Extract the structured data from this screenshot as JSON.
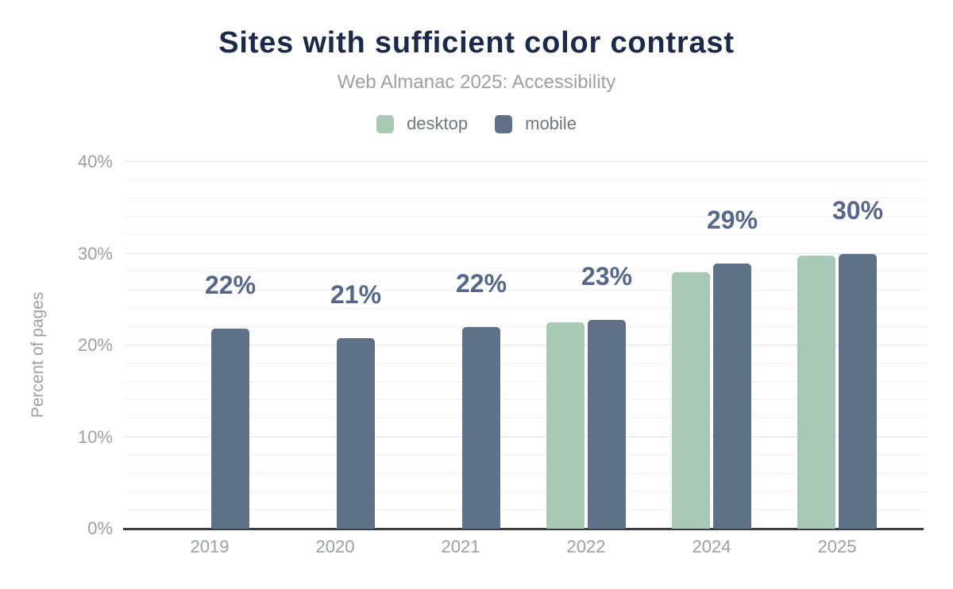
{
  "chart": {
    "colors": {
      "desktop": "#a9c9b7",
      "mobile": "#5f7089",
      "data_label": "#55688c",
      "title": "#1b2a4a",
      "subtitle": "#9aa1a8",
      "tick_label": "#9aa0a6",
      "legend_label": "#70777f",
      "axis_line": "#3b3e43",
      "grid_major": "#e3e3e5",
      "grid_minor": "#f2f2f3"
    }
  },
  "chart_data": {
    "type": "bar",
    "title": "Sites with sufficient color contrast",
    "subtitle": "Web Almanac 2025: Accessibility",
    "xlabel": "",
    "ylabel": "Percent of pages",
    "categories": [
      "2019",
      "2020",
      "2021",
      "2022",
      "2024",
      "2025"
    ],
    "series": [
      {
        "name": "desktop",
        "color": "#a9c9b7",
        "values": [
          null,
          null,
          null,
          22.5,
          28.0,
          29.8
        ]
      },
      {
        "name": "mobile",
        "color": "#5f7089",
        "values": [
          21.8,
          20.8,
          22.0,
          22.8,
          28.9,
          30.0
        ]
      }
    ],
    "data_labels": [
      "22%",
      "21%",
      "22%",
      "23%",
      "29%",
      "30%"
    ],
    "ylim": [
      0,
      40
    ],
    "yticks": [
      0,
      10,
      20,
      30,
      40
    ],
    "ytick_labels": [
      "0%",
      "10%",
      "20%",
      "30%",
      "40%"
    ],
    "minor_grid_step": 2,
    "grid": true,
    "legend_position": "top"
  }
}
